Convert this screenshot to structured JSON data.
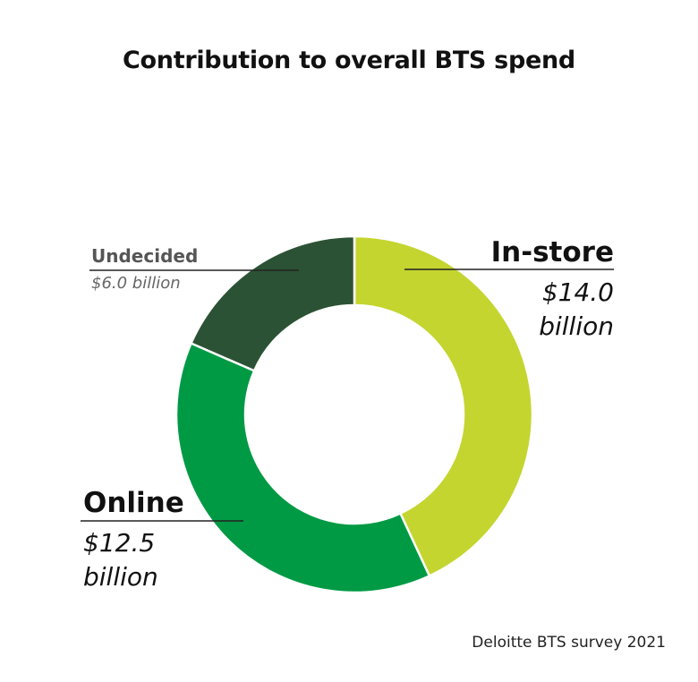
{
  "chart_data": {
    "type": "pie",
    "variant": "donut",
    "title": "Contribution to overall BTS spend",
    "slices": [
      {
        "label": "In-store",
        "value": 14.0,
        "value_label": "$14.0 billion",
        "color": "#c4d52f"
      },
      {
        "label": "Online",
        "value": 12.5,
        "value_label": "$12.5 billion",
        "color": "#009a44"
      },
      {
        "label": "Undecided",
        "value": 6.0,
        "value_label": "$6.0 billion",
        "color": "#2b5234"
      }
    ]
  },
  "labels": {
    "instore": {
      "name": "In-store",
      "line1": "$14.0",
      "line2": "billion"
    },
    "online": {
      "name": "Online",
      "line1": "$12.5",
      "line2": "billion"
    },
    "undecided": {
      "name": "Undecided",
      "value": "$6.0 billion"
    }
  },
  "source": "Deloitte BTS survey 2021"
}
